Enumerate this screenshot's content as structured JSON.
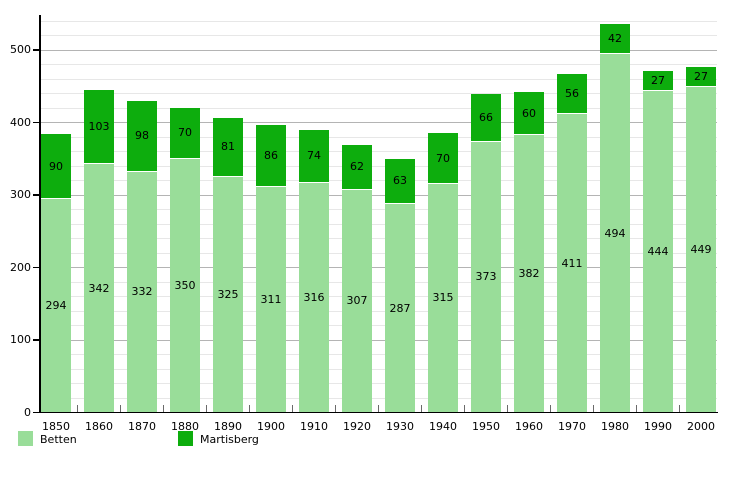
{
  "chart_data": {
    "type": "bar",
    "stacked": true,
    "title": "",
    "xlabel": "",
    "ylabel": "",
    "categories": [
      "1850",
      "1860",
      "1870",
      "1880",
      "1890",
      "1900",
      "1910",
      "1920",
      "1930",
      "1940",
      "1950",
      "1960",
      "1970",
      "1980",
      "1990",
      "2000"
    ],
    "series": [
      {
        "name": "Betten",
        "color": "#99dd99",
        "values": [
          294,
          342,
          332,
          350,
          325,
          311,
          316,
          307,
          287,
          315,
          373,
          382,
          411,
          494,
          444,
          449
        ]
      },
      {
        "name": "Martisberg",
        "color": "#0dad0d",
        "values": [
          90,
          103,
          98,
          70,
          81,
          86,
          74,
          62,
          63,
          70,
          66,
          60,
          56,
          42,
          27,
          27
        ]
      }
    ],
    "ylim": [
      0,
      540
    ],
    "yticks": [
      0,
      100,
      200,
      300,
      400,
      500
    ],
    "minor_grid_step": 20,
    "grid": true,
    "legend_position": "bottom-left",
    "bar_value_labels": true,
    "colors": {
      "axis": "#000000",
      "major_grid": "#b4b4b4",
      "minor_grid": "#e7e7e7",
      "label_text": "#000000",
      "background": "#ffffff"
    }
  }
}
